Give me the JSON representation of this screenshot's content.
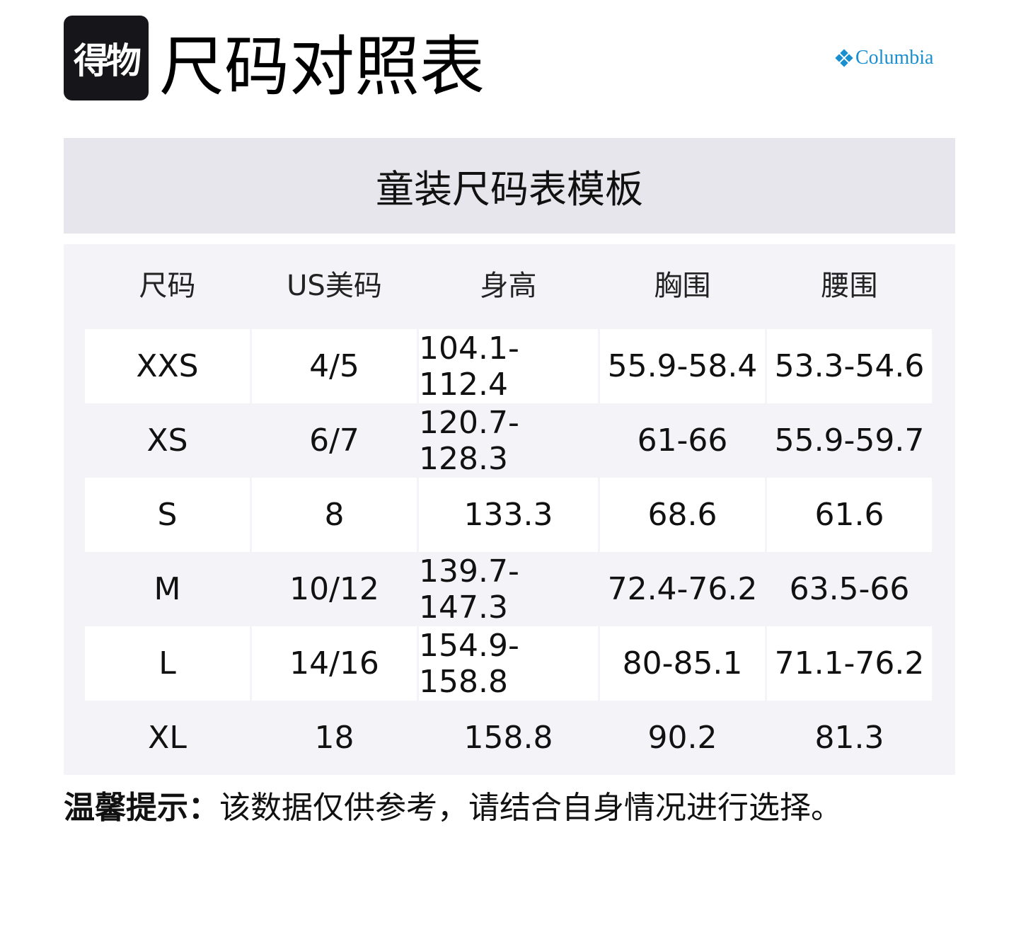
{
  "logo": {
    "text": "得物"
  },
  "title": "尺码对照表",
  "brand": {
    "name": "Columbia",
    "color": "#1a8fd0"
  },
  "table_title": "童装尺码表模板",
  "columns": [
    "尺码",
    "US美码",
    "身高",
    "胸围",
    "腰围"
  ],
  "rows": [
    [
      "XXS",
      "4/5",
      "104.1-112.4",
      "55.9-58.4",
      "53.3-54.6"
    ],
    [
      "XS",
      "6/7",
      "120.7-128.3",
      "61-66",
      "55.9-59.7"
    ],
    [
      "S",
      "8",
      "133.3",
      "68.6",
      "61.6"
    ],
    [
      "M",
      "10/12",
      "139.7-147.3",
      "72.4-76.2",
      "63.5-66"
    ],
    [
      "L",
      "14/16",
      "154.9-158.8",
      "80-85.1",
      "71.1-76.2"
    ],
    [
      "XL",
      "18",
      "158.8",
      "90.2",
      "81.3"
    ]
  ],
  "note": {
    "label": "温馨提示：",
    "text": "该数据仅供参考，请结合自身情况进行选择。"
  }
}
